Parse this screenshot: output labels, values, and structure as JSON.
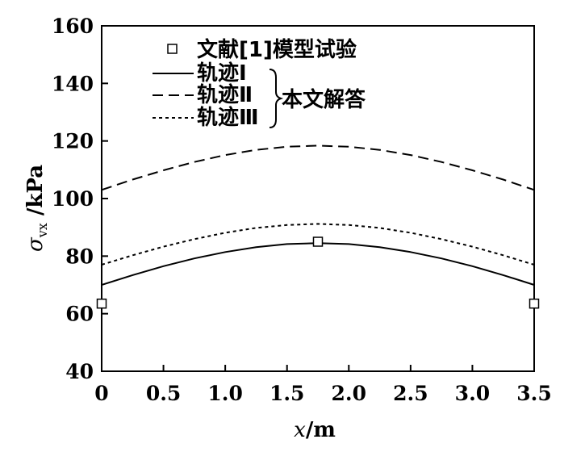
{
  "chart_data": {
    "type": "line",
    "xlabel": {
      "var": "x",
      "unit": "/m"
    },
    "ylabel": {
      "var": "σ",
      "sub": "vx",
      "unit": " /kPa"
    },
    "xlim": [
      0,
      3.5
    ],
    "ylim": [
      40,
      160
    ],
    "xticks": [
      0,
      0.5,
      1.0,
      1.5,
      2.0,
      2.5,
      3.0,
      3.5
    ],
    "xtick_labels": [
      "0",
      "0.5",
      "1.0",
      "1.5",
      "2.0",
      "2.5",
      "3.0",
      "3.5"
    ],
    "yticks": [
      40,
      60,
      80,
      100,
      120,
      140,
      160
    ],
    "ytick_labels": [
      "40",
      "60",
      "80",
      "100",
      "120",
      "140",
      "160"
    ],
    "grid": false,
    "legend_position": "top-center",
    "legend_group_label": "本文解答",
    "series": [
      {
        "name": "轨迹Ⅰ",
        "style": "solid",
        "x": [
          0,
          0.25,
          0.5,
          0.75,
          1.0,
          1.25,
          1.5,
          1.75,
          2.0,
          2.25,
          2.5,
          2.75,
          3.0,
          3.25,
          3.5
        ],
        "y": [
          70,
          73.4,
          76.5,
          79.2,
          81.4,
          83.1,
          84.2,
          84.5,
          84.2,
          83.1,
          81.4,
          79.2,
          76.5,
          73.4,
          70
        ]
      },
      {
        "name": "轨迹Ⅱ",
        "style": "dashed",
        "x": [
          0,
          0.25,
          0.5,
          0.75,
          1.0,
          1.25,
          1.5,
          1.75,
          2.0,
          2.25,
          2.5,
          2.75,
          3.0,
          3.25,
          3.5
        ],
        "y": [
          103,
          106.6,
          109.8,
          112.7,
          115.1,
          116.9,
          118,
          118.4,
          118,
          116.9,
          115.1,
          112.7,
          109.8,
          106.6,
          103
        ]
      },
      {
        "name": "轨迹Ⅲ",
        "style": "dotted",
        "x": [
          0,
          0.25,
          0.5,
          0.75,
          1.0,
          1.25,
          1.5,
          1.75,
          2.0,
          2.25,
          2.5,
          2.75,
          3.0,
          3.25,
          3.5
        ],
        "y": [
          77,
          80.3,
          83.3,
          85.9,
          88.1,
          89.8,
          90.8,
          91.2,
          90.8,
          89.8,
          88.1,
          85.9,
          83.3,
          80.3,
          77
        ]
      },
      {
        "name": "文献[1]模型试验",
        "style": "markers",
        "marker": "open-square",
        "x": [
          0,
          1.75,
          3.5
        ],
        "y": [
          63.5,
          85,
          63.5
        ]
      }
    ]
  }
}
